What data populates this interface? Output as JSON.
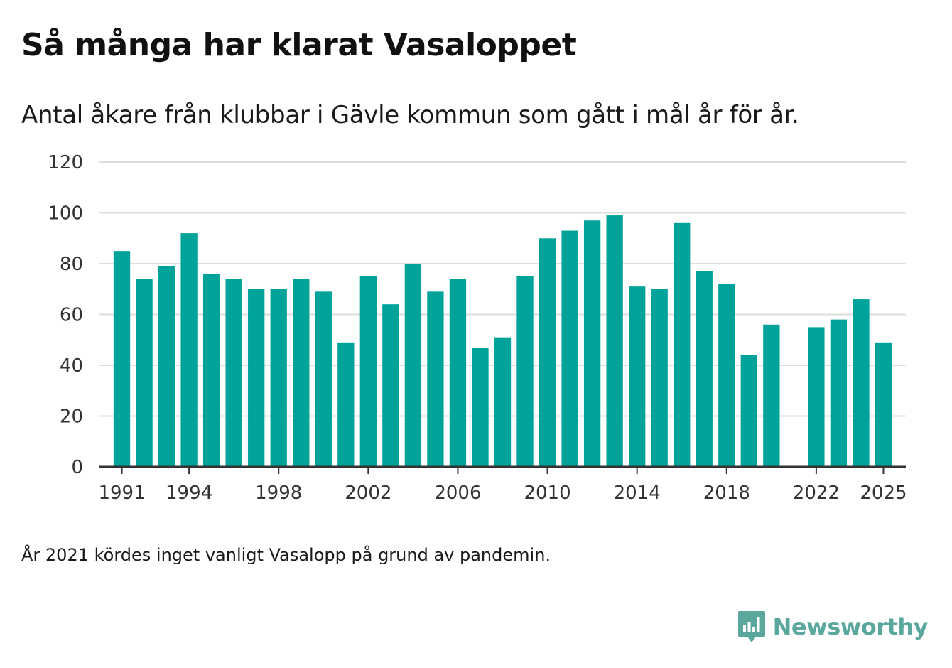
{
  "header": {
    "title": "Så många har klarat Vasaloppet",
    "subtitle": "Antal åkare från klubbar i Gävle kommun som gått i mål år för år."
  },
  "footer": {
    "note": "År 2021 kördes inget vanligt Vasalopp på grund av pandemin.",
    "brand": "Newsworthy"
  },
  "colors": {
    "bar": "#00a39a",
    "grid": "#dddddd",
    "axis": "#333333",
    "brand": "#5aa89d"
  },
  "chart_data": {
    "type": "bar",
    "title": "Så många har klarat Vasaloppet",
    "xlabel": "",
    "ylabel": "",
    "x": [
      1991,
      1992,
      1993,
      1994,
      1995,
      1996,
      1997,
      1998,
      1999,
      2000,
      2001,
      2002,
      2003,
      2004,
      2005,
      2006,
      2007,
      2008,
      2009,
      2010,
      2011,
      2012,
      2013,
      2014,
      2015,
      2016,
      2017,
      2018,
      2019,
      2020,
      2021,
      2022,
      2023,
      2024,
      2025
    ],
    "values": [
      85,
      74,
      79,
      92,
      76,
      74,
      70,
      70,
      74,
      69,
      49,
      75,
      64,
      80,
      69,
      74,
      47,
      51,
      75,
      90,
      93,
      97,
      99,
      71,
      70,
      96,
      77,
      72,
      44,
      56,
      null,
      55,
      58,
      66,
      49
    ],
    "xlim": [
      1990,
      2026
    ],
    "ylim": [
      0,
      120
    ],
    "yticks": [
      0,
      20,
      40,
      60,
      80,
      100,
      120
    ],
    "xticks": [
      1991,
      1994,
      1998,
      2002,
      2006,
      2010,
      2014,
      2018,
      2022,
      2025
    ],
    "grid": true,
    "legend": "none"
  }
}
